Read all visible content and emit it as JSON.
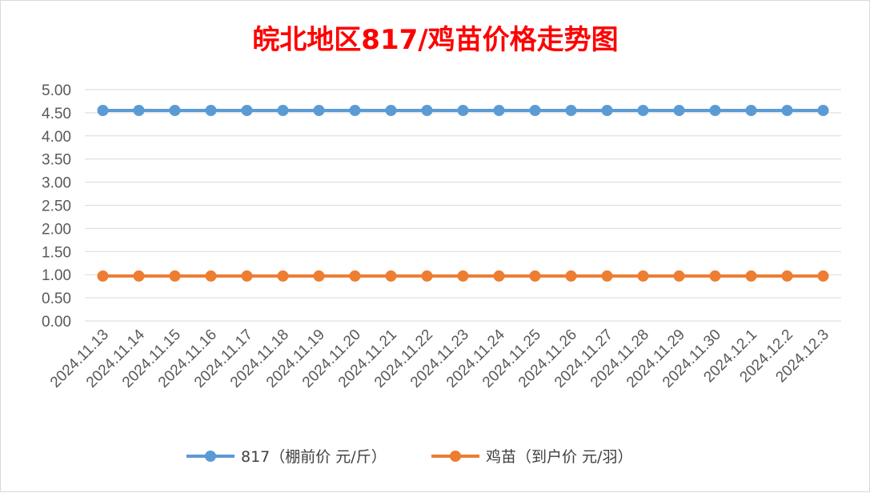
{
  "chart_data": {
    "type": "line",
    "title": "皖北地区817/鸡苗价格走势图",
    "title_color": "#ff0000",
    "categories": [
      "2024.11.13",
      "2024.11.14",
      "2024.11.15",
      "2024.11.16",
      "2024.11.17",
      "2024.11.18",
      "2024.11.19",
      "2024.11.20",
      "2024.11.21",
      "2024.11.22",
      "2024.11.23",
      "2024.11.24",
      "2024.11.25",
      "2024.11.26",
      "2024.11.27",
      "2024.11.28",
      "2024.11.29",
      "2024.11.30",
      "2024.12.1",
      "2024.12.2",
      "2024.12.3"
    ],
    "y_ticks": [
      "0.00",
      "0.50",
      "1.00",
      "1.50",
      "2.00",
      "2.50",
      "3.00",
      "3.50",
      "4.00",
      "4.50",
      "5.00"
    ],
    "ylim": [
      0,
      5
    ],
    "grid": true,
    "legend_position": "bottom",
    "series": [
      {
        "name": "817（棚前价 元/斤）",
        "color": "#5b9bd5",
        "values": [
          4.55,
          4.55,
          4.55,
          4.55,
          4.55,
          4.55,
          4.55,
          4.55,
          4.55,
          4.55,
          4.55,
          4.55,
          4.55,
          4.55,
          4.55,
          4.55,
          4.55,
          4.55,
          4.55,
          4.55,
          4.55
        ]
      },
      {
        "name": "鸡苗（到户价 元/羽）",
        "color": "#ed7d31",
        "values": [
          0.97,
          0.97,
          0.97,
          0.97,
          0.97,
          0.97,
          0.97,
          0.97,
          0.97,
          0.97,
          0.97,
          0.97,
          0.97,
          0.97,
          0.97,
          0.97,
          0.97,
          0.97,
          0.97,
          0.97,
          0.97
        ]
      }
    ]
  }
}
